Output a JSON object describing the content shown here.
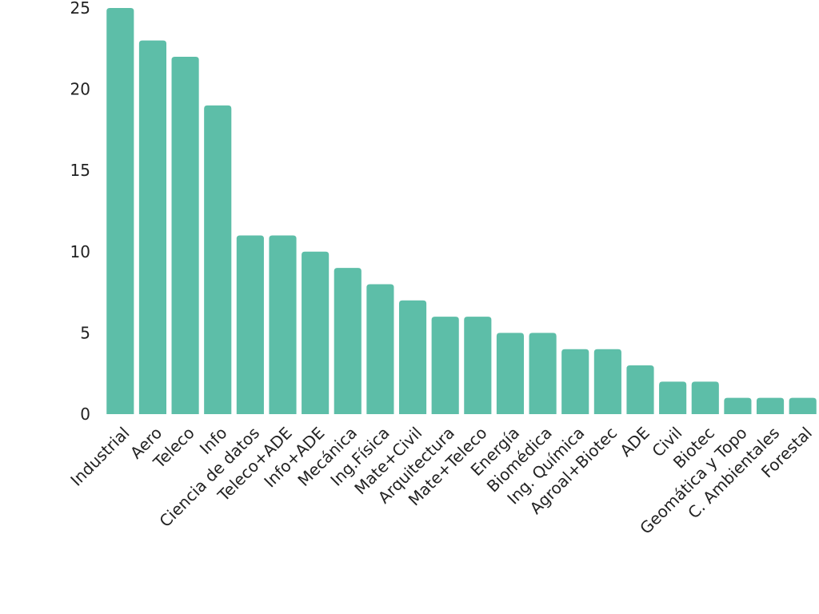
{
  "chart_data": {
    "type": "bar",
    "title": "",
    "xlabel": "",
    "ylabel": "",
    "categories": [
      "Industrial",
      "Aero",
      "Teleco",
      "Info",
      "Ciencia de datos",
      "Teleco+ADE",
      "Info+ADE",
      "Mecánica",
      "Ing.Física",
      "Mate+Civil",
      "Arquitectura",
      "Mate+Teleco",
      "Energía",
      "Biomédica",
      "Ing. Química",
      "Agroal+Biotec",
      "ADE",
      "Civil",
      "Biotec",
      "Geomática y Topo",
      "C. Ambientales",
      "Forestal"
    ],
    "values": [
      25,
      23,
      22,
      19,
      11,
      11,
      10,
      9,
      8,
      7,
      6,
      6,
      5,
      5,
      4,
      4,
      3,
      2,
      2,
      1,
      1,
      1
    ],
    "ylim": [
      0,
      25
    ],
    "yticks": [
      "0",
      "5",
      "10",
      "15",
      "20",
      "25"
    ],
    "grid": false,
    "bar_color": "#5dbea8"
  }
}
